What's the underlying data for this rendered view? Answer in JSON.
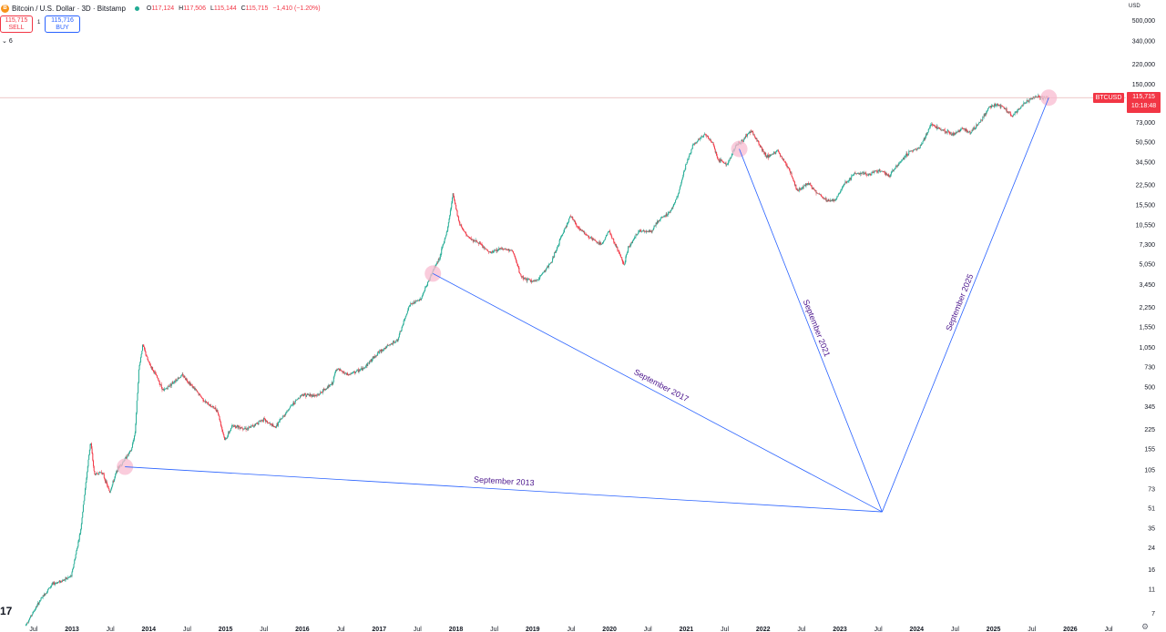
{
  "header": {
    "logo": "B",
    "symbol_title": "Bitcoin / U.S. Dollar · 3D · Bitstamp",
    "ohlc": [
      {
        "key": "O",
        "value": "117,124"
      },
      {
        "key": "H",
        "value": "117,506"
      },
      {
        "key": "L",
        "value": "115,144"
      },
      {
        "key": "C",
        "value": "115,715"
      },
      {
        "key": "",
        "value": "−1,410 (−1.20%)"
      }
    ]
  },
  "trade": {
    "sell_price": "115,715",
    "sell_label": "SELL",
    "spread": "1",
    "buy_price": "115,716",
    "buy_label": "BUY"
  },
  "indicator_count": "6",
  "currency": "USD",
  "last_price": {
    "ticker": "BTCUSD",
    "price": "115,715",
    "countdown": "10:18:48"
  },
  "tv_logo": "17",
  "colors": {
    "up": "#22ab94",
    "down": "#f23645",
    "trend_line": "#2962ff",
    "annotation_text": "#4a148c",
    "circle_fill": "#f8bbd0"
  },
  "chart_data": {
    "type": "candlestick",
    "title": "Bitcoin / U.S. Dollar · 3D · Bitstamp",
    "y_scale": "log",
    "ylim": [
      5,
      700000
    ],
    "y_ticks": [
      {
        "value": 500000,
        "label": "500,000"
      },
      {
        "value": 340000,
        "label": "340,000"
      },
      {
        "value": 220000,
        "label": "220,000"
      },
      {
        "value": 150000,
        "label": "150,000"
      },
      {
        "value": 73000,
        "label": "73,000"
      },
      {
        "value": 50500,
        "label": "50,500"
      },
      {
        "value": 34500,
        "label": "34,500"
      },
      {
        "value": 22500,
        "label": "22,500"
      },
      {
        "value": 15500,
        "label": "15,500"
      },
      {
        "value": 10550,
        "label": "10,550"
      },
      {
        "value": 7300,
        "label": "7,300"
      },
      {
        "value": 5050,
        "label": "5,050"
      },
      {
        "value": 3450,
        "label": "3,450"
      },
      {
        "value": 2250,
        "label": "2,250"
      },
      {
        "value": 1550,
        "label": "1,550"
      },
      {
        "value": 1050,
        "label": "1,050"
      },
      {
        "value": 730,
        "label": "730"
      },
      {
        "value": 500,
        "label": "500"
      },
      {
        "value": 345,
        "label": "345"
      },
      {
        "value": 225,
        "label": "225"
      },
      {
        "value": 155,
        "label": "155"
      },
      {
        "value": 105,
        "label": "105"
      },
      {
        "value": 73,
        "label": "73"
      },
      {
        "value": 51,
        "label": "51"
      },
      {
        "value": 35,
        "label": "35"
      },
      {
        "value": 24,
        "label": "24"
      },
      {
        "value": 16,
        "label": "16"
      },
      {
        "value": 11,
        "label": "11"
      },
      {
        "value": 7,
        "label": "7"
      }
    ],
    "x_range": [
      2012.4,
      2027.0
    ],
    "x_ticks": [
      {
        "t": 2012.5,
        "label": "Jul",
        "major": false
      },
      {
        "t": 2013.0,
        "label": "2013",
        "major": true
      },
      {
        "t": 2013.5,
        "label": "Jul",
        "major": false
      },
      {
        "t": 2014.0,
        "label": "2014",
        "major": true
      },
      {
        "t": 2014.5,
        "label": "Jul",
        "major": false
      },
      {
        "t": 2015.0,
        "label": "2015",
        "major": true
      },
      {
        "t": 2015.5,
        "label": "Jul",
        "major": false
      },
      {
        "t": 2016.0,
        "label": "2016",
        "major": true
      },
      {
        "t": 2016.5,
        "label": "Jul",
        "major": false
      },
      {
        "t": 2017.0,
        "label": "2017",
        "major": true
      },
      {
        "t": 2017.5,
        "label": "Jul",
        "major": false
      },
      {
        "t": 2018.0,
        "label": "2018",
        "major": true
      },
      {
        "t": 2018.5,
        "label": "Jul",
        "major": false
      },
      {
        "t": 2019.0,
        "label": "2019",
        "major": true
      },
      {
        "t": 2019.5,
        "label": "Jul",
        "major": false
      },
      {
        "t": 2020.0,
        "label": "2020",
        "major": true
      },
      {
        "t": 2020.5,
        "label": "Jul",
        "major": false
      },
      {
        "t": 2021.0,
        "label": "2021",
        "major": true
      },
      {
        "t": 2021.5,
        "label": "Jul",
        "major": false
      },
      {
        "t": 2022.0,
        "label": "2022",
        "major": true
      },
      {
        "t": 2022.5,
        "label": "Jul",
        "major": false
      },
      {
        "t": 2023.0,
        "label": "2023",
        "major": true
      },
      {
        "t": 2023.5,
        "label": "Jul",
        "major": false
      },
      {
        "t": 2024.0,
        "label": "2024",
        "major": true
      },
      {
        "t": 2024.5,
        "label": "Jul",
        "major": false
      },
      {
        "t": 2025.0,
        "label": "2025",
        "major": true
      },
      {
        "t": 2025.5,
        "label": "Jul",
        "major": false
      },
      {
        "t": 2026.0,
        "label": "2026",
        "major": true
      },
      {
        "t": 2026.5,
        "label": "Jul",
        "major": false
      }
    ],
    "price_path": [
      [
        2012.4,
        5.5
      ],
      [
        2012.6,
        9
      ],
      [
        2012.75,
        12
      ],
      [
        2012.9,
        13
      ],
      [
        2013.0,
        14
      ],
      [
        2013.12,
        33
      ],
      [
        2013.25,
        180
      ],
      [
        2013.3,
        95
      ],
      [
        2013.4,
        100
      ],
      [
        2013.5,
        68
      ],
      [
        2013.6,
        105
      ],
      [
        2013.7,
        128
      ],
      [
        2013.78,
        150
      ],
      [
        2013.83,
        210
      ],
      [
        2013.88,
        700
      ],
      [
        2013.93,
        1100
      ],
      [
        2014.0,
        800
      ],
      [
        2014.1,
        620
      ],
      [
        2014.2,
        460
      ],
      [
        2014.35,
        560
      ],
      [
        2014.45,
        620
      ],
      [
        2014.6,
        480
      ],
      [
        2014.75,
        370
      ],
      [
        2014.9,
        320
      ],
      [
        2015.0,
        180
      ],
      [
        2015.1,
        240
      ],
      [
        2015.3,
        225
      ],
      [
        2015.5,
        270
      ],
      [
        2015.65,
        230
      ],
      [
        2015.85,
        340
      ],
      [
        2016.0,
        430
      ],
      [
        2016.2,
        420
      ],
      [
        2016.4,
        530
      ],
      [
        2016.45,
        700
      ],
      [
        2016.6,
        620
      ],
      [
        2016.8,
        700
      ],
      [
        2017.0,
        950
      ],
      [
        2017.1,
        1050
      ],
      [
        2017.25,
        1200
      ],
      [
        2017.4,
        2300
      ],
      [
        2017.55,
        2600
      ],
      [
        2017.7,
        4300
      ],
      [
        2017.8,
        5800
      ],
      [
        2017.9,
        9800
      ],
      [
        2017.97,
        19000
      ],
      [
        2018.05,
        11000
      ],
      [
        2018.15,
        8500
      ],
      [
        2018.3,
        7500
      ],
      [
        2018.45,
        6200
      ],
      [
        2018.6,
        6800
      ],
      [
        2018.75,
        6400
      ],
      [
        2018.85,
        4000
      ],
      [
        2018.95,
        3700
      ],
      [
        2019.05,
        3600
      ],
      [
        2019.25,
        5200
      ],
      [
        2019.4,
        9000
      ],
      [
        2019.5,
        12500
      ],
      [
        2019.6,
        10000
      ],
      [
        2019.75,
        8300
      ],
      [
        2019.9,
        7200
      ],
      [
        2020.0,
        9400
      ],
      [
        2020.2,
        5000
      ],
      [
        2020.25,
        6800
      ],
      [
        2020.4,
        9500
      ],
      [
        2020.55,
        9200
      ],
      [
        2020.65,
        11500
      ],
      [
        2020.8,
        13500
      ],
      [
        2020.9,
        18500
      ],
      [
        2021.0,
        32000
      ],
      [
        2021.1,
        48000
      ],
      [
        2021.25,
        58000
      ],
      [
        2021.35,
        50000
      ],
      [
        2021.42,
        36000
      ],
      [
        2021.55,
        33000
      ],
      [
        2021.65,
        47000
      ],
      [
        2021.75,
        52000
      ],
      [
        2021.85,
        63000
      ],
      [
        2021.95,
        49000
      ],
      [
        2022.05,
        38000
      ],
      [
        2022.2,
        42000
      ],
      [
        2022.35,
        30000
      ],
      [
        2022.45,
        20000
      ],
      [
        2022.6,
        23000
      ],
      [
        2022.7,
        19500
      ],
      [
        2022.85,
        16500
      ],
      [
        2022.95,
        16800
      ],
      [
        2023.05,
        22000
      ],
      [
        2023.2,
        28000
      ],
      [
        2023.4,
        27000
      ],
      [
        2023.5,
        30000
      ],
      [
        2023.65,
        26500
      ],
      [
        2023.8,
        35000
      ],
      [
        2023.92,
        42000
      ],
      [
        2024.05,
        45000
      ],
      [
        2024.2,
        70000
      ],
      [
        2024.35,
        63000
      ],
      [
        2024.5,
        58000
      ],
      [
        2024.6,
        65000
      ],
      [
        2024.7,
        60000
      ],
      [
        2024.85,
        75000
      ],
      [
        2024.95,
        98000
      ],
      [
        2025.05,
        102000
      ],
      [
        2025.15,
        95000
      ],
      [
        2025.25,
        82000
      ],
      [
        2025.35,
        95000
      ],
      [
        2025.45,
        108000
      ],
      [
        2025.55,
        118000
      ],
      [
        2025.65,
        114000
      ],
      [
        2025.72,
        116000
      ]
    ],
    "annotations": {
      "apex": {
        "t": 2023.55,
        "value": 47
      },
      "lines": [
        {
          "label": "September 2013",
          "t": 2013.69,
          "value": 110
        },
        {
          "label": "September 2017",
          "t": 2017.7,
          "value": 4200
        },
        {
          "label": "September 2021",
          "t": 2021.69,
          "value": 44000
        },
        {
          "label": "September 2025",
          "t": 2025.72,
          "value": 115715
        }
      ]
    }
  }
}
